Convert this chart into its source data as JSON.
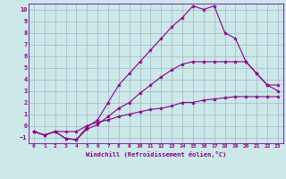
{
  "bg_color": "#cce8e8",
  "line_color": "#880088",
  "grid_color": "#99aabb",
  "spine_color": "#7700aa",
  "xlim": [
    -0.5,
    23.5
  ],
  "ylim": [
    -1.5,
    10.5
  ],
  "xticks": [
    0,
    1,
    2,
    3,
    4,
    5,
    6,
    7,
    8,
    9,
    10,
    11,
    12,
    13,
    14,
    15,
    16,
    17,
    18,
    19,
    20,
    21,
    22,
    23
  ],
  "yticks": [
    -1,
    0,
    1,
    2,
    3,
    4,
    5,
    6,
    7,
    8,
    9,
    10
  ],
  "xlabel": "Windchill (Refroidissement éolien,°C)",
  "line1_x": [
    0,
    1,
    2,
    3,
    4,
    5,
    6,
    7,
    8,
    9,
    10,
    11,
    12,
    13,
    14,
    15,
    16,
    17,
    18,
    19,
    20,
    21,
    22,
    23
  ],
  "line1_y": [
    -0.5,
    -0.8,
    -0.5,
    -0.5,
    -0.5,
    0.0,
    0.3,
    0.5,
    0.8,
    1.0,
    1.2,
    1.4,
    1.5,
    1.7,
    2.0,
    2.0,
    2.2,
    2.3,
    2.4,
    2.5,
    2.5,
    2.5,
    2.5,
    2.5
  ],
  "line2_x": [
    0,
    1,
    2,
    3,
    4,
    5,
    6,
    7,
    8,
    9,
    10,
    11,
    12,
    13,
    14,
    15,
    16,
    17,
    18,
    19,
    20,
    21,
    22,
    23
  ],
  "line2_y": [
    -0.5,
    -0.8,
    -0.5,
    -1.1,
    -1.2,
    -0.1,
    0.5,
    2.0,
    3.5,
    4.5,
    5.5,
    6.5,
    7.5,
    8.5,
    9.3,
    10.3,
    10.0,
    10.3,
    8.0,
    7.5,
    5.5,
    4.5,
    3.5,
    3.0
  ],
  "line3_x": [
    0,
    1,
    2,
    3,
    4,
    5,
    6,
    7,
    8,
    9,
    10,
    11,
    12,
    13,
    14,
    15,
    16,
    17,
    18,
    19,
    20,
    21,
    22,
    23
  ],
  "line3_y": [
    -0.5,
    -0.8,
    -0.5,
    -1.1,
    -1.2,
    -0.3,
    0.1,
    0.8,
    1.5,
    2.0,
    2.8,
    3.5,
    4.2,
    4.8,
    5.3,
    5.5,
    5.5,
    5.5,
    5.5,
    5.5,
    5.5,
    4.5,
    3.5,
    3.5
  ],
  "markersize": 3,
  "linewidth": 0.8
}
